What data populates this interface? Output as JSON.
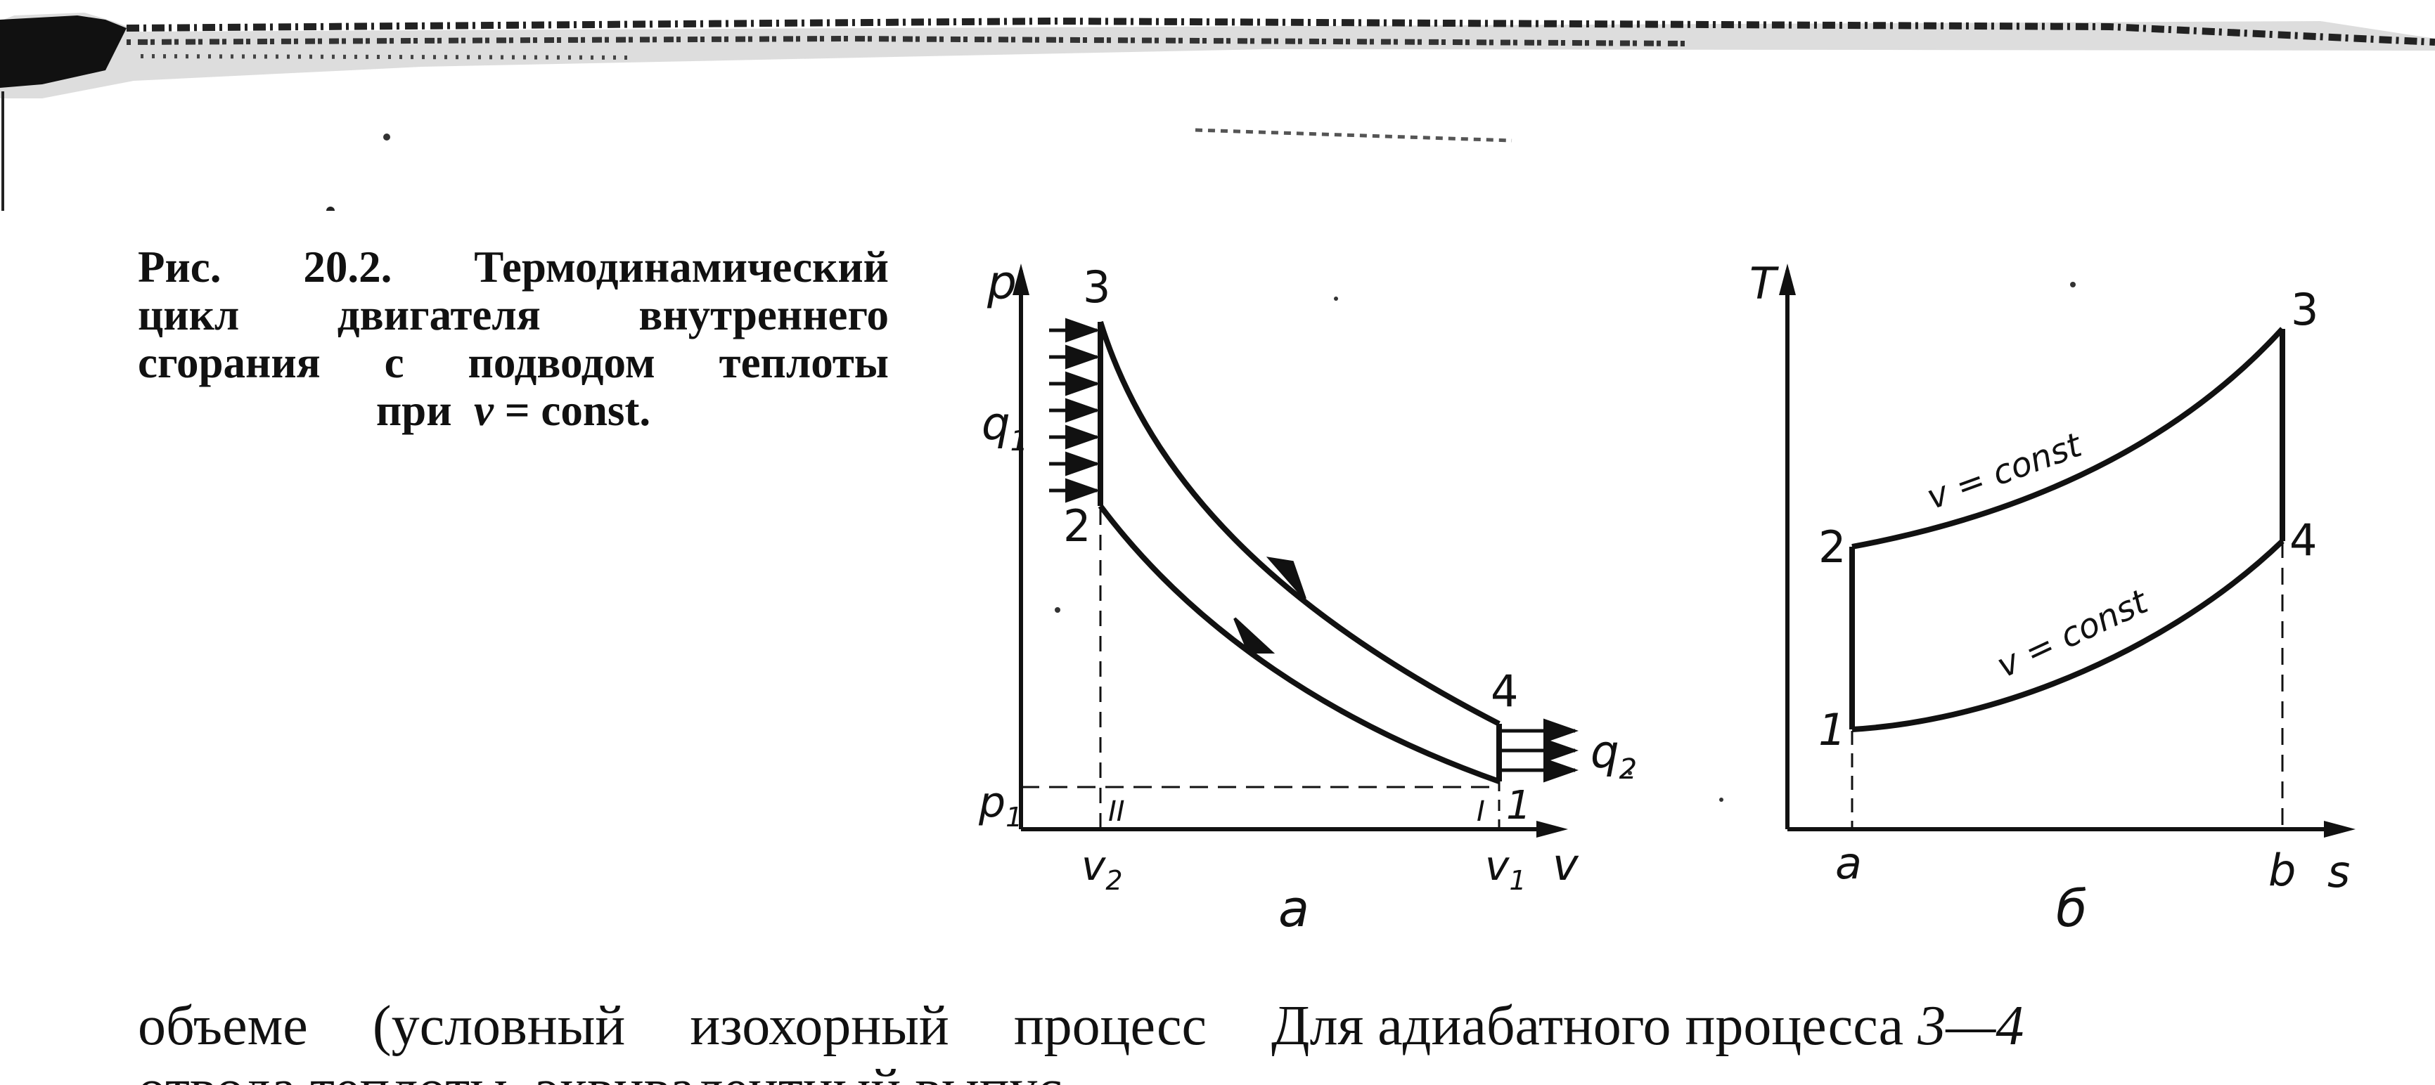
{
  "caption": {
    "line1_a": "Рис.",
    "line1_b": "20.2.",
    "line1_c": "Термодинамический",
    "line2_a": "цикл",
    "line2_b": "двигателя",
    "line2_c": "внутреннего",
    "line3_a": "сгорания",
    "line3_b": "с",
    "line3_c": "подводом",
    "line3_d": "теплоты",
    "line4_a": "при",
    "line4_var": "v",
    "line4_b": "= const."
  },
  "figure_a": {
    "axis_y_label": "p",
    "axis_x_label": "v",
    "point_labels": [
      "1",
      "2",
      "3",
      "4"
    ],
    "heat_in_label": "q",
    "heat_in_sub": "1",
    "heat_out_label": "q",
    "heat_out_sub": "2",
    "p1_label": "p",
    "p1_sub": "1",
    "v2_label": "v",
    "v2_sub": "2",
    "v1_label": "v",
    "v1_sub": "1",
    "marker_II": "II",
    "marker_I": "I",
    "sublabel": "a"
  },
  "figure_b": {
    "axis_y_label": "T",
    "axis_x_label": "s",
    "point_labels": [
      "1",
      "2",
      "3",
      "4"
    ],
    "curve_upper_label": "v = const",
    "curve_lower_label": "v = const",
    "tick_a": "a",
    "tick_b": "b",
    "sublabel": "б"
  },
  "body": {
    "left_words": [
      "объеме",
      "(условный",
      "изохорный",
      "процесс"
    ],
    "right_text": "Для адиабатного процесса",
    "right_italic": "3—4",
    "cutoff_text": "отвода теплоты, эквивалентный выпус-"
  },
  "colors": {
    "ink": "#111111",
    "paper": "#ffffff"
  }
}
